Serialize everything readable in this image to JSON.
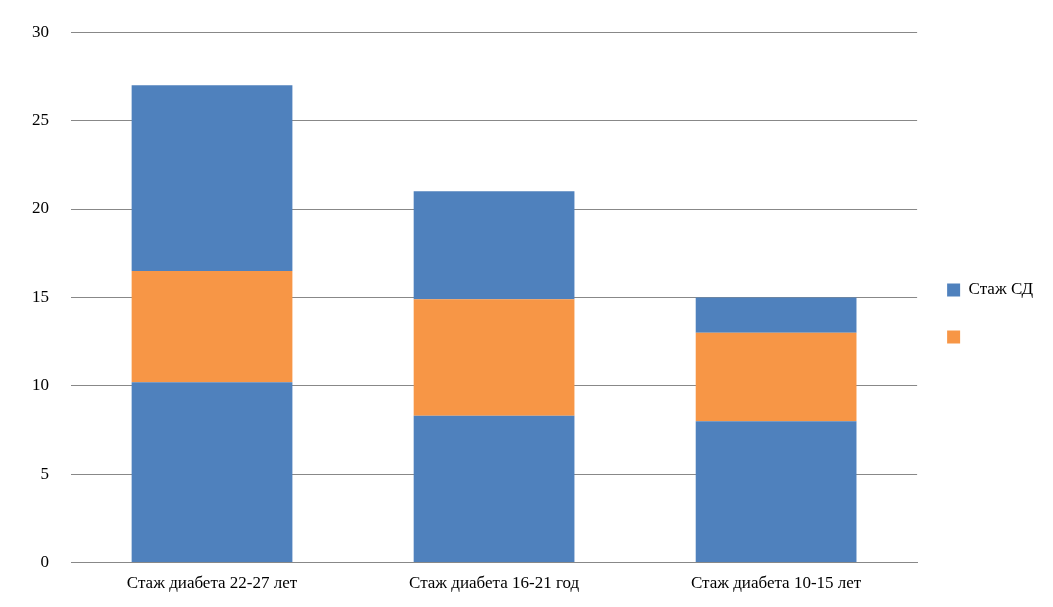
{
  "chart_data": {
    "type": "bar",
    "stacked": true,
    "categories": [
      "Стаж диабета 22-27 лет",
      "Стаж диабета 16-21 год",
      "Стаж диабета 10-15 лет"
    ],
    "series": [
      {
        "name": "Стаж СД",
        "color": "#4f81bd",
        "values": [
          10.2,
          8.3,
          8.0
        ]
      },
      {
        "color": "#f79646",
        "values": [
          6.3,
          6.6,
          5.0
        ]
      },
      {
        "color": "#4f81bd",
        "values": [
          10.5,
          6.1,
          2.0
        ]
      }
    ],
    "ylim": [
      0,
      30
    ],
    "yticks": [
      0,
      5,
      10,
      15,
      20,
      25,
      30
    ],
    "grid": "y",
    "legend": "right"
  }
}
